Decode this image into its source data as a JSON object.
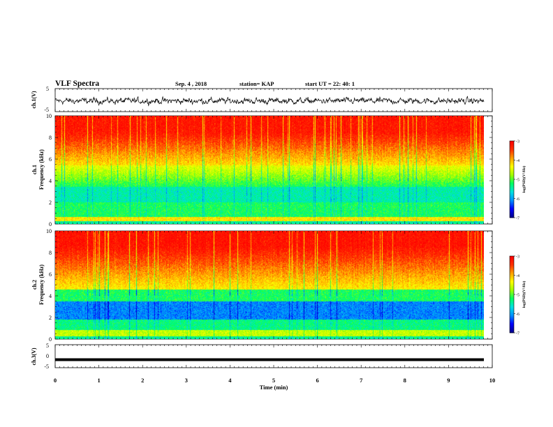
{
  "header": {
    "title": "VLF Spectra",
    "date": "Sep. 4 , 2018",
    "station": "station= KAP",
    "start": "start  UT  =   22: 40: 1"
  },
  "chart_data": [
    {
      "type": "line",
      "panel": "ch1-waveform",
      "ylabel": "ch.1(V)",
      "ylim": [
        -5,
        5
      ],
      "yticks": [
        "5",
        "-5"
      ],
      "xlim": [
        0,
        10
      ],
      "series_note": "noisy voltage trace, mean about -0.5 V, amplitude about ±2.5 V"
    },
    {
      "type": "heatmap",
      "panel": "ch1-spectrogram",
      "ylabel": "ch.1\nFrequency  (kHz)",
      "ylim": [
        0,
        10
      ],
      "yticks": [
        "0",
        "2",
        "4",
        "6",
        "8",
        "10"
      ],
      "xlim": [
        0,
        9.8
      ],
      "colorbar": {
        "label": "log(PSD)(V²/Hz)",
        "range": [
          -7,
          -3
        ],
        "ticks": [
          "-3",
          "-4",
          "-5",
          "-6",
          "-7"
        ]
      }
    },
    {
      "type": "heatmap",
      "panel": "ch2-spectrogram",
      "ylabel": "ch.2\nFrequency  (kHz)",
      "ylim": [
        0,
        10
      ],
      "yticks": [
        "0",
        "2",
        "4",
        "6",
        "8",
        "10"
      ],
      "xlim": [
        0,
        9.8
      ],
      "colorbar": {
        "label": "log(PSD)(V²/Hz)",
        "range": [
          -7,
          -3
        ],
        "ticks": [
          "-3",
          "-4",
          "-5",
          "-6",
          "-7"
        ]
      }
    },
    {
      "type": "line",
      "panel": "ch3-waveform",
      "ylabel": "ch.3(V)",
      "ylim": [
        -5,
        5
      ],
      "yticks": [
        "5",
        "0",
        "-5"
      ],
      "xlim": [
        0,
        10
      ],
      "series_note": "flat line at about -1.5 V"
    }
  ],
  "xaxis": {
    "label": "Time  (min)",
    "ticks": [
      "0",
      "1",
      "2",
      "3",
      "4",
      "5",
      "6",
      "7",
      "8",
      "9",
      "10"
    ]
  },
  "colormap": [
    "#00008b",
    "#0000ff",
    "#0090ff",
    "#00e0e0",
    "#00ff60",
    "#a0ff00",
    "#ffff00",
    "#ffa000",
    "#ff3000",
    "#ff0000"
  ]
}
